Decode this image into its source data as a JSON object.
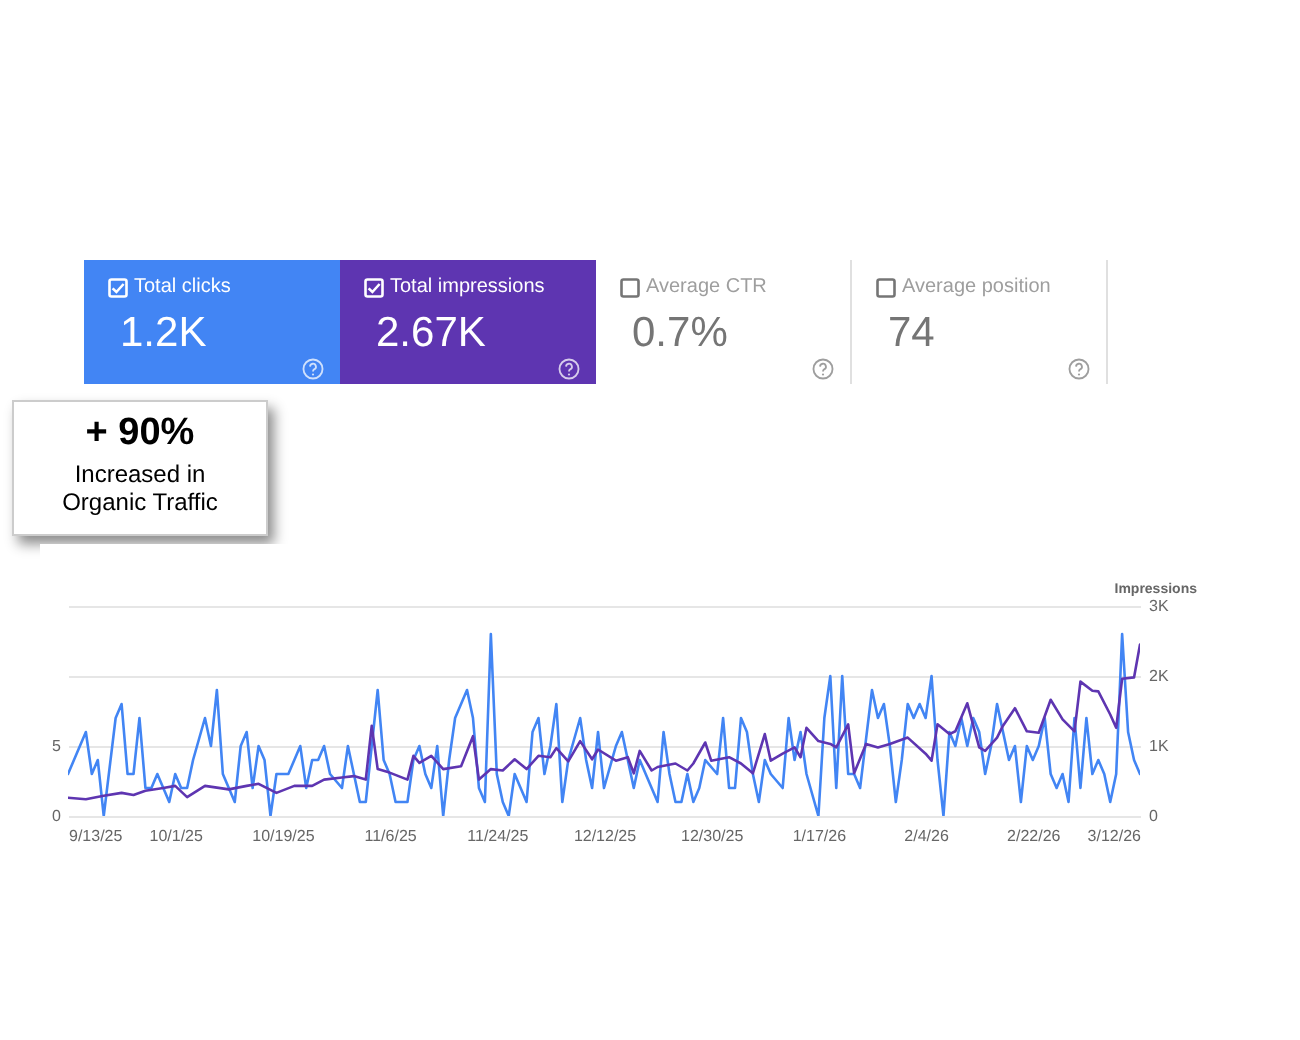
{
  "chart_data": {
    "type": "line",
    "legend": "top",
    "grid": "y",
    "marker": "none",
    "line_style": "solid",
    "y2label": "Impressions",
    "annotations": [
      "1.2K",
      "2.67K",
      "Average CTR",
      "0.7%",
      "Average position",
      "74",
      "+ 90%",
      "Increased in Organic Traffic"
    ],
    "xlim": [
      "2025-09-13",
      "2026-03-12"
    ],
    "xticks": [
      {
        "value": "2025-09-13",
        "label": "9/13/25"
      },
      {
        "value": "2025-10-01",
        "label": "10/1/25"
      },
      {
        "value": "2025-10-19",
        "label": "10/19/25"
      },
      {
        "value": "2025-11-06",
        "label": "11/6/25"
      },
      {
        "value": "2025-11-24",
        "label": "11/24/25"
      },
      {
        "value": "2025-12-12",
        "label": "12/12/25"
      },
      {
        "value": "2025-12-30",
        "label": "12/30/25"
      },
      {
        "value": "2026-01-17",
        "label": "1/17/26"
      },
      {
        "value": "2026-02-04",
        "label": "2/4/26"
      },
      {
        "value": "2026-02-22",
        "label": "2/22/26"
      },
      {
        "value": "2026-03-12",
        "label": "3/12/26"
      }
    ],
    "ylim": [
      0,
      15
    ],
    "yticks": [
      0,
      5,
      {
        "value": 10,
        "label": null
      },
      {
        "value": 15,
        "label": null
      }
    ],
    "y2lim": [
      0,
      3000
    ],
    "y2ticks": [
      0,
      {
        "value": 1000,
        "label": "1K"
      },
      {
        "value": 2000,
        "label": "2K"
      },
      {
        "value": 3000,
        "label": "3K"
      }
    ],
    "series": [
      {
        "name": "Total clicks",
        "color": "#4285f4",
        "x": [
          "2025-09-13",
          "2025-09-16",
          "2025-09-17",
          "2025-09-18",
          "2025-09-19",
          "2025-09-21",
          "2025-09-22",
          "2025-09-23",
          "2025-09-24",
          "2025-09-25",
          "2025-09-26",
          "2025-09-27",
          "2025-09-28",
          "2025-09-30",
          "2025-10-01",
          "2025-10-02",
          "2025-10-03",
          "2025-10-04",
          "2025-10-06",
          "2025-10-07",
          "2025-10-08",
          "2025-10-09",
          "2025-10-11",
          "2025-10-12",
          "2025-10-13",
          "2025-10-14",
          "2025-10-15",
          "2025-10-16",
          "2025-10-17",
          "2025-10-18",
          "2025-10-20",
          "2025-10-21",
          "2025-10-22",
          "2025-10-23",
          "2025-10-24",
          "2025-10-25",
          "2025-10-26",
          "2025-10-27",
          "2025-10-29",
          "2025-10-30",
          "2025-10-31",
          "2025-11-01",
          "2025-11-02",
          "2025-11-04",
          "2025-11-05",
          "2025-11-06",
          "2025-11-07",
          "2025-11-09",
          "2025-11-10",
          "2025-11-11",
          "2025-11-12",
          "2025-11-13",
          "2025-11-14",
          "2025-11-15",
          "2025-11-16",
          "2025-11-17",
          "2025-11-19",
          "2025-11-20",
          "2025-11-21",
          "2025-11-22",
          "2025-11-23",
          "2025-11-24",
          "2025-11-25",
          "2025-11-26",
          "2025-11-27",
          "2025-11-29",
          "2025-11-30",
          "2025-12-01",
          "2025-12-02",
          "2025-12-03",
          "2025-12-04",
          "2025-12-05",
          "2025-12-06",
          "2025-12-08",
          "2025-12-09",
          "2025-12-10",
          "2025-12-11",
          "2025-12-12",
          "2025-12-14",
          "2025-12-15",
          "2025-12-16",
          "2025-12-17",
          "2025-12-18",
          "2025-12-19",
          "2025-12-21",
          "2025-12-22",
          "2025-12-23",
          "2025-12-24",
          "2025-12-25",
          "2025-12-26",
          "2025-12-27",
          "2025-12-28",
          "2025-12-29",
          "2025-12-31",
          "2026-01-01",
          "2026-01-02",
          "2026-01-03",
          "2026-01-04",
          "2026-01-05",
          "2026-01-06",
          "2026-01-07",
          "2026-01-08",
          "2026-01-09",
          "2026-01-11",
          "2026-01-12",
          "2026-01-13",
          "2026-01-14",
          "2026-01-15",
          "2026-01-17",
          "2026-01-18",
          "2026-01-19",
          "2026-01-20",
          "2026-01-21",
          "2026-01-22",
          "2026-01-23",
          "2026-01-24",
          "2026-01-26",
          "2026-01-27",
          "2026-01-28",
          "2026-01-29",
          "2026-01-30",
          "2026-01-31",
          "2026-02-01",
          "2026-02-02",
          "2026-02-03",
          "2026-02-04",
          "2026-02-05",
          "2026-02-06",
          "2026-02-07",
          "2026-02-08",
          "2026-02-09",
          "2026-02-10",
          "2026-02-11",
          "2026-02-12",
          "2026-02-13",
          "2026-02-14",
          "2026-02-15",
          "2026-02-16",
          "2026-02-17",
          "2026-02-18",
          "2026-02-19",
          "2026-02-20",
          "2026-02-21",
          "2026-02-22",
          "2026-02-23",
          "2026-02-24",
          "2026-02-25",
          "2026-02-26",
          "2026-02-27",
          "2026-02-28",
          "2026-03-01",
          "2026-03-02",
          "2026-03-03",
          "2026-03-04",
          "2026-03-05",
          "2026-03-06",
          "2026-03-07",
          "2026-03-08",
          "2026-03-09",
          "2026-03-10",
          "2026-03-11",
          "2026-03-12"
        ],
        "values": [
          3,
          6,
          3,
          4,
          0,
          7,
          8,
          3,
          3,
          7,
          2,
          2,
          3,
          1,
          3,
          2,
          2,
          4,
          7,
          5,
          9,
          3,
          1,
          5,
          6,
          2,
          5,
          4,
          0,
          3,
          3,
          4,
          5,
          2,
          4,
          4,
          5,
          3,
          2,
          5,
          3,
          1,
          1,
          9,
          4,
          3,
          1,
          1,
          4,
          5,
          3,
          2,
          5,
          0,
          4,
          7,
          9,
          7,
          2,
          1,
          13,
          3,
          1,
          0,
          3,
          1,
          6,
          7,
          3,
          5,
          8,
          1,
          4,
          7,
          4,
          2,
          6,
          2,
          5,
          6,
          4,
          2,
          4,
          3,
          1,
          6,
          3,
          1,
          1,
          3,
          1,
          2,
          4,
          3,
          7,
          2,
          2,
          7,
          6,
          3,
          1,
          4,
          3,
          2,
          7,
          4,
          6,
          3,
          0,
          7,
          10,
          2,
          10,
          3,
          3,
          2,
          9,
          7,
          8,
          5,
          1,
          4,
          8,
          7,
          8,
          7,
          10,
          4,
          0,
          6,
          5,
          7,
          5,
          7,
          6,
          3,
          5,
          8,
          6,
          4,
          5,
          1,
          5,
          4,
          5,
          7,
          3,
          2,
          3,
          1,
          7,
          2,
          7,
          3,
          4,
          3,
          1,
          3,
          13,
          6,
          4,
          3
        ]
      },
      {
        "name": "Total impressions",
        "color": "#5e35b1",
        "axis": "y2",
        "x": [
          "2025-09-13",
          "2025-09-16",
          "2025-09-19",
          "2025-09-22",
          "2025-09-24",
          "2025-09-26",
          "2025-09-29",
          "2025-10-01",
          "2025-10-03",
          "2025-10-06",
          "2025-10-10",
          "2025-10-13",
          "2025-10-15",
          "2025-10-18",
          "2025-10-21",
          "2025-10-24",
          "2025-10-26",
          "2025-10-29",
          "2025-10-31",
          "2025-11-02",
          "2025-11-03",
          "2025-11-04",
          "2025-11-06",
          "2025-11-09",
          "2025-11-10",
          "2025-11-11",
          "2025-11-13",
          "2025-11-15",
          "2025-11-18",
          "2025-11-20",
          "2025-11-21",
          "2025-11-23",
          "2025-11-25",
          "2025-11-27",
          "2025-11-29",
          "2025-12-01",
          "2025-12-03",
          "2025-12-04",
          "2025-12-06",
          "2025-12-08",
          "2025-12-10",
          "2025-12-11",
          "2025-12-14",
          "2025-12-16",
          "2025-12-17",
          "2025-12-18",
          "2025-12-20",
          "2025-12-21",
          "2025-12-24",
          "2025-12-26",
          "2025-12-27",
          "2025-12-29",
          "2025-12-30",
          "2026-01-02",
          "2026-01-04",
          "2026-01-06",
          "2026-01-08",
          "2026-01-09",
          "2026-01-11",
          "2026-01-13",
          "2026-01-14",
          "2026-01-15",
          "2026-01-17",
          "2026-01-19",
          "2026-01-20",
          "2026-01-22",
          "2026-01-23",
          "2026-01-25",
          "2026-01-27",
          "2026-01-29",
          "2026-02-01",
          "2026-02-04",
          "2026-02-05",
          "2026-02-06",
          "2026-02-08",
          "2026-02-09",
          "2026-02-11",
          "2026-02-13",
          "2026-02-14",
          "2026-02-16",
          "2026-02-17",
          "2026-02-19",
          "2026-02-21",
          "2026-02-23",
          "2026-02-25",
          "2026-02-27",
          "2026-03-01",
          "2026-03-02",
          "2026-03-04",
          "2026-03-05",
          "2026-03-07",
          "2026-03-08",
          "2026-03-09",
          "2026-03-11",
          "2026-03-12"
        ],
        "values": [
          260,
          240,
          290,
          330,
          300,
          360,
          400,
          430,
          270,
          430,
          380,
          430,
          460,
          330,
          430,
          430,
          520,
          550,
          570,
          520,
          1290,
          670,
          620,
          520,
          860,
          760,
          860,
          670,
          710,
          1140,
          520,
          670,
          650,
          810,
          670,
          860,
          840,
          970,
          780,
          1070,
          810,
          950,
          790,
          840,
          610,
          930,
          650,
          700,
          750,
          650,
          750,
          1050,
          790,
          840,
          750,
          610,
          1170,
          790,
          890,
          980,
          840,
          1260,
          1070,
          1030,
          980,
          1310,
          610,
          1030,
          980,
          1030,
          1120,
          890,
          790,
          1310,
          1170,
          1210,
          1610,
          980,
          930,
          1120,
          1290,
          1540,
          1210,
          1190,
          1660,
          1380,
          1210,
          1920,
          1790,
          1780,
          1450,
          1260,
          1960,
          1980,
          2450
        ]
      }
    ]
  }
}
